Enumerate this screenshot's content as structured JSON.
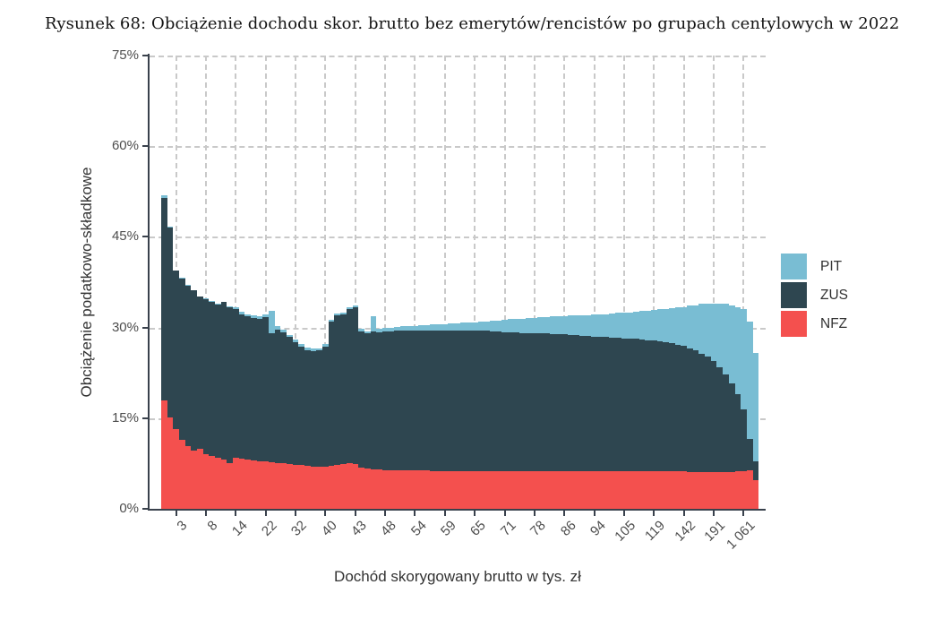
{
  "figure": {
    "title": "Rysunek 68: Obciążenie dochodu skor. brutto bez emerytów/rencistów po grupach centylowych w 2022"
  },
  "chart_data": {
    "type": "bar",
    "stacked": true,
    "title": "Rysunek 68: Obciążenie dochodu skor. brutto bez emerytów/rencistów po grupach centylowych w 2022",
    "xlabel": "Dochód skorygowany brutto w tys. zł",
    "ylabel": "Obciążenie podatkowo-składkowe",
    "x_description": "100 centile groups of adjusted gross income (percentiles 1-100), tick labels show income in thousand PLN at every 5th centile",
    "ylim": [
      0,
      75
    ],
    "grid": "dashed",
    "legend_position": "right",
    "ytick_values": [
      0,
      15,
      30,
      45,
      60,
      75
    ],
    "ytick_labels": [
      "0%",
      "15%",
      "30%",
      "45%",
      "60%",
      "75%"
    ],
    "xtick_bar_positions": [
      3,
      8,
      13,
      18,
      23,
      28,
      33,
      38,
      43,
      48,
      53,
      58,
      63,
      68,
      73,
      78,
      83,
      88,
      93,
      98
    ],
    "xtick_labels": [
      "3",
      "8",
      "14",
      "22",
      "32",
      "40",
      "43",
      "48",
      "54",
      "59",
      "65",
      "71",
      "78",
      "86",
      "94",
      "105",
      "119",
      "142",
      "191",
      "1 061"
    ],
    "legend": [
      {
        "name": "PIT",
        "color": "#79bdd3"
      },
      {
        "name": "ZUS",
        "color": "#2e4650"
      },
      {
        "name": "NFZ",
        "color": "#f4504e"
      }
    ],
    "series": [
      {
        "name": "NFZ",
        "color": "#f4504e",
        "values": [
          17.9,
          15.1,
          13.2,
          11.4,
          10.4,
          9.7,
          9.9,
          9.0,
          8.7,
          8.4,
          8.1,
          7.5,
          8.4,
          8.3,
          8.1,
          8.0,
          7.9,
          7.8,
          7.7,
          7.6,
          7.5,
          7.4,
          7.3,
          7.2,
          7.1,
          7.0,
          7.0,
          7.0,
          7.1,
          7.2,
          7.4,
          7.5,
          7.4,
          6.8,
          6.7,
          6.5,
          6.5,
          6.4,
          6.4,
          6.4,
          6.4,
          6.4,
          6.4,
          6.4,
          6.4,
          6.3,
          6.3,
          6.3,
          6.3,
          6.3,
          6.3,
          6.3,
          6.3,
          6.3,
          6.3,
          6.3,
          6.3,
          6.3,
          6.3,
          6.3,
          6.3,
          6.3,
          6.3,
          6.3,
          6.3,
          6.3,
          6.3,
          6.3,
          6.3,
          6.3,
          6.2,
          6.2,
          6.2,
          6.2,
          6.2,
          6.2,
          6.2,
          6.2,
          6.2,
          6.2,
          6.2,
          6.2,
          6.2,
          6.2,
          6.2,
          6.2,
          6.2,
          6.2,
          6.1,
          6.1,
          6.1,
          6.1,
          6.1,
          6.1,
          6.1,
          6.1,
          6.2,
          6.3,
          6.4,
          4.8
        ]
      },
      {
        "name": "ZUS",
        "color": "#2e4650",
        "values": [
          33.5,
          31.4,
          26.2,
          26.7,
          26.5,
          26.4,
          25.2,
          25.7,
          25.6,
          25.4,
          26.1,
          25.9,
          24.6,
          23.9,
          23.7,
          23.6,
          23.5,
          23.9,
          21.4,
          22.0,
          21.7,
          21.0,
          20.3,
          19.7,
          19.2,
          19.1,
          19.2,
          19.9,
          23.9,
          24.8,
          24.8,
          25.6,
          26.0,
          22.6,
          22.3,
          22.8,
          22.7,
          22.9,
          23.0,
          23.1,
          23.1,
          23.1,
          23.1,
          23.1,
          23.1,
          23.2,
          23.2,
          23.2,
          23.2,
          23.2,
          23.2,
          23.2,
          23.2,
          23.2,
          23.2,
          23.0,
          23.0,
          22.9,
          22.9,
          22.9,
          22.8,
          22.8,
          22.8,
          22.7,
          22.7,
          22.6,
          22.6,
          22.6,
          22.5,
          22.5,
          22.4,
          22.4,
          22.3,
          22.3,
          22.3,
          22.1,
          22.1,
          22.0,
          22.0,
          21.9,
          21.8,
          21.7,
          21.6,
          21.5,
          21.4,
          21.2,
          21.0,
          20.8,
          20.5,
          20.1,
          19.6,
          19.1,
          18.3,
          17.3,
          16.1,
          14.7,
          12.8,
          10.2,
          5.1,
          3.0
        ]
      },
      {
        "name": "PIT",
        "color": "#79bdd3",
        "values": [
          0.5,
          0.2,
          0.1,
          0.1,
          0.1,
          0.1,
          0.1,
          0.1,
          0.1,
          0.1,
          0.1,
          0.1,
          0.4,
          0.4,
          0.4,
          0.4,
          0.4,
          0.5,
          3.7,
          0.6,
          0.4,
          0.4,
          0.4,
          0.4,
          0.4,
          0.4,
          0.4,
          0.4,
          0.3,
          0.3,
          0.3,
          0.3,
          0.3,
          0.4,
          0.4,
          2.6,
          0.6,
          0.6,
          0.6,
          0.6,
          0.7,
          0.8,
          0.8,
          0.9,
          0.9,
          1.0,
          1.1,
          1.1,
          1.2,
          1.2,
          1.3,
          1.4,
          1.4,
          1.5,
          1.5,
          1.8,
          1.9,
          2.1,
          2.2,
          2.2,
          2.4,
          2.5,
          2.5,
          2.7,
          2.7,
          2.9,
          3.0,
          3.0,
          3.2,
          3.2,
          3.4,
          3.4,
          3.6,
          3.6,
          3.7,
          4.0,
          4.1,
          4.2,
          4.3,
          4.5,
          4.7,
          4.9,
          5.1,
          5.3,
          5.5,
          5.8,
          6.1,
          6.4,
          7.0,
          7.5,
          8.2,
          8.8,
          9.6,
          10.6,
          11.7,
          12.9,
          14.4,
          16.5,
          19.5,
          18.0
        ]
      }
    ]
  }
}
